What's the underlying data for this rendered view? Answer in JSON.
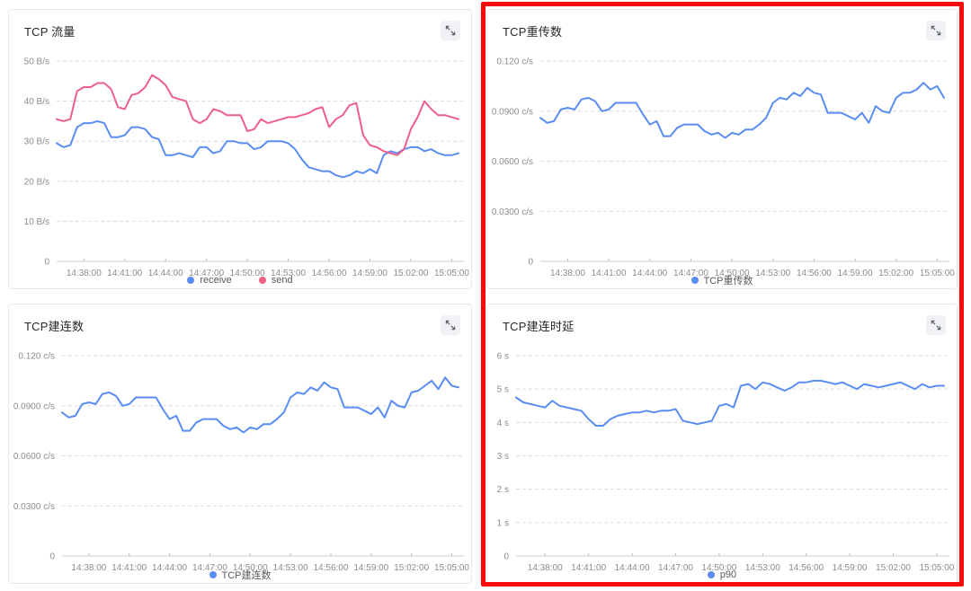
{
  "page": {
    "background": "#ffffff"
  },
  "highlight": {
    "color": "#f50d0d",
    "note": "red annotation box around right column charts"
  },
  "icons": {
    "expand": "diagonal-resize-arrows"
  },
  "chart_data": [
    {
      "type": "line",
      "title": "TCP 流量",
      "y_unit": "B/s",
      "y_max": 50,
      "y_ticks": {
        "labels": [
          "50 B/s",
          "40 B/s",
          "30 B/s",
          "20 B/s",
          "10 B/s",
          "0"
        ],
        "values": [
          50,
          40,
          30,
          20,
          10,
          0
        ]
      },
      "x_ticks": {
        "labels": [
          "14:38:00",
          "14:41:00",
          "14:44:00",
          "14:47:00",
          "14:50:00",
          "14:53:00",
          "14:56:00",
          "14:59:00",
          "15:02:00",
          "15:05:00"
        ],
        "indices": [
          4,
          10,
          16,
          22,
          28,
          34,
          40,
          46,
          52,
          58
        ]
      },
      "highlighted": false,
      "series": [
        {
          "name": "receive",
          "color": "#5a8df2",
          "values": [
            29.5,
            28.5,
            29,
            33.5,
            34.5,
            34.5,
            35,
            34.5,
            31,
            31,
            31.5,
            33.5,
            33.5,
            33,
            31,
            30.5,
            26.5,
            26.5,
            27,
            26.5,
            26,
            28.5,
            28.5,
            27,
            27.5,
            30,
            30,
            29.5,
            29.5,
            28,
            28.5,
            30,
            30,
            30,
            29.5,
            28,
            25.5,
            23.5,
            23,
            22.5,
            22.5,
            21.5,
            21,
            21.5,
            22.5,
            22,
            23,
            22,
            26.5,
            27.5,
            27,
            28,
            28.5,
            28.5,
            27.5,
            28,
            27,
            26.5,
            26.5,
            27
          ]
        },
        {
          "name": "send",
          "color": "#ee5f88",
          "values": [
            35.5,
            35,
            35.5,
            42.5,
            43.5,
            43.5,
            44.5,
            44.5,
            43,
            38.5,
            38,
            41.5,
            42,
            43.5,
            46.5,
            45.5,
            44,
            41,
            40.5,
            40,
            35.5,
            34.5,
            35.5,
            38,
            37.5,
            36.5,
            36.5,
            36.5,
            32.5,
            33,
            35.5,
            34.5,
            35,
            35.5,
            36,
            36,
            36.5,
            37,
            38,
            38.5,
            33.5,
            35.5,
            36.5,
            39,
            39.5,
            31.5,
            29,
            28.5,
            27.5,
            27,
            26.5,
            28,
            33,
            36,
            40,
            38,
            36.5,
            36.5,
            36,
            35.5
          ]
        }
      ]
    },
    {
      "type": "line",
      "title": "TCP重传数",
      "y_unit": "c/s",
      "y_max": 0.12,
      "y_ticks": {
        "labels": [
          "0.120 c/s",
          "0.0900 c/s",
          "0.0600 c/s",
          "0.0300 c/s",
          "0"
        ],
        "values": [
          0.12,
          0.09,
          0.06,
          0.03,
          0
        ]
      },
      "x_ticks": {
        "labels": [
          "14:38:00",
          "14:41:00",
          "14:44:00",
          "14:47:00",
          "14:50:00",
          "14:53:00",
          "14:56:00",
          "14:59:00",
          "15:02:00",
          "15:05:00"
        ],
        "indices": [
          4,
          10,
          16,
          22,
          28,
          34,
          40,
          46,
          52,
          58
        ]
      },
      "highlighted": true,
      "series": [
        {
          "name": "TCP重传数",
          "color": "#5a8df2",
          "values": [
            0.086,
            0.083,
            0.084,
            0.091,
            0.092,
            0.091,
            0.097,
            0.098,
            0.096,
            0.09,
            0.091,
            0.095,
            0.095,
            0.095,
            0.095,
            0.088,
            0.082,
            0.084,
            0.075,
            0.075,
            0.08,
            0.082,
            0.082,
            0.082,
            0.078,
            0.076,
            0.077,
            0.074,
            0.077,
            0.076,
            0.079,
            0.079,
            0.082,
            0.086,
            0.095,
            0.098,
            0.097,
            0.101,
            0.099,
            0.104,
            0.101,
            0.1,
            0.089,
            0.089,
            0.089,
            0.087,
            0.085,
            0.089,
            0.083,
            0.093,
            0.09,
            0.089,
            0.098,
            0.101,
            0.101,
            0.103,
            0.107,
            0.103,
            0.105,
            0.098
          ]
        }
      ]
    },
    {
      "type": "line",
      "title": "TCP建连数",
      "y_unit": "c/s",
      "y_max": 0.12,
      "y_ticks": {
        "labels": [
          "0.120 c/s",
          "0.0900 c/s",
          "0.0600 c/s",
          "0.0300 c/s",
          "0"
        ],
        "values": [
          0.12,
          0.09,
          0.06,
          0.03,
          0
        ]
      },
      "x_ticks": {
        "labels": [
          "14:38:00",
          "14:41:00",
          "14:44:00",
          "14:47:00",
          "14:50:00",
          "14:53:00",
          "14:56:00",
          "14:59:00",
          "15:02:00",
          "15:05:00"
        ],
        "indices": [
          4,
          10,
          16,
          22,
          28,
          34,
          40,
          46,
          52,
          58
        ]
      },
      "highlighted": false,
      "series": [
        {
          "name": "TCP建连数",
          "color": "#5a8df2",
          "values": [
            0.086,
            0.083,
            0.084,
            0.091,
            0.092,
            0.091,
            0.097,
            0.098,
            0.096,
            0.09,
            0.091,
            0.095,
            0.095,
            0.095,
            0.095,
            0.088,
            0.082,
            0.084,
            0.075,
            0.075,
            0.08,
            0.082,
            0.082,
            0.082,
            0.078,
            0.076,
            0.077,
            0.074,
            0.077,
            0.076,
            0.079,
            0.079,
            0.082,
            0.086,
            0.095,
            0.098,
            0.097,
            0.101,
            0.099,
            0.104,
            0.101,
            0.1,
            0.089,
            0.089,
            0.089,
            0.087,
            0.085,
            0.089,
            0.083,
            0.093,
            0.09,
            0.089,
            0.098,
            0.099,
            0.102,
            0.105,
            0.1,
            0.107,
            0.102,
            0.101
          ]
        }
      ]
    },
    {
      "type": "line",
      "title": "TCP建连时延",
      "y_unit": "s",
      "y_max": 6,
      "y_ticks": {
        "labels": [
          "6 s",
          "5 s",
          "4 s",
          "3 s",
          "2 s",
          "1 s",
          "0"
        ],
        "values": [
          6,
          5,
          4,
          3,
          2,
          1,
          0
        ]
      },
      "x_ticks": {
        "labels": [
          "14:38:00",
          "14:41:00",
          "14:44:00",
          "14:47:00",
          "14:50:00",
          "14:53:00",
          "14:56:00",
          "14:59:00",
          "15:02:00",
          "15:05:00"
        ],
        "indices": [
          4,
          10,
          16,
          22,
          28,
          34,
          40,
          46,
          52,
          58
        ]
      },
      "highlighted": true,
      "series": [
        {
          "name": "p90",
          "color": "#5a8df2",
          "values": [
            4.75,
            4.6,
            4.55,
            4.5,
            4.45,
            4.65,
            4.5,
            4.45,
            4.4,
            4.35,
            4.1,
            3.9,
            3.9,
            4.1,
            4.2,
            4.25,
            4.3,
            4.3,
            4.35,
            4.3,
            4.35,
            4.35,
            4.4,
            4.05,
            4.0,
            3.95,
            4.0,
            4.05,
            4.5,
            4.55,
            4.45,
            5.1,
            5.15,
            5.0,
            5.2,
            5.15,
            5.05,
            4.95,
            5.05,
            5.2,
            5.2,
            5.25,
            5.25,
            5.2,
            5.15,
            5.2,
            5.1,
            5.0,
            5.15,
            5.1,
            5.05,
            5.1,
            5.15,
            5.2,
            5.1,
            5.0,
            5.15,
            5.05,
            5.1,
            5.1
          ]
        }
      ]
    }
  ]
}
